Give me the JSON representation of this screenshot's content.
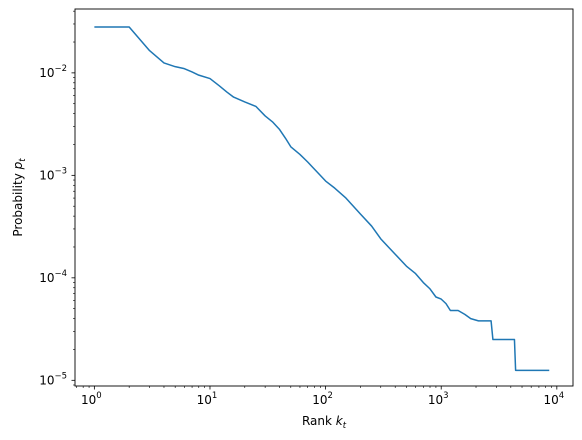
{
  "chart_data": {
    "type": "line",
    "title": "",
    "xlabel": "Rank k_t",
    "ylabel": "Probability p_t",
    "xscale": "log",
    "yscale": "log",
    "xlim": [
      0.68,
      13800
    ],
    "ylim": [
      8.8e-06,
      0.042
    ],
    "grid": false,
    "color": "#1f77b4",
    "x_ticks": [
      {
        "value": 1,
        "base": "10",
        "exp": "0"
      },
      {
        "value": 10,
        "base": "10",
        "exp": "1"
      },
      {
        "value": 100,
        "base": "10",
        "exp": "2"
      },
      {
        "value": 1000,
        "base": "10",
        "exp": "3"
      },
      {
        "value": 10000,
        "base": "10",
        "exp": "4"
      }
    ],
    "y_ticks": [
      {
        "value": 1e-05,
        "base": "10",
        "exp": "−5"
      },
      {
        "value": 0.0001,
        "base": "10",
        "exp": "−4"
      },
      {
        "value": 0.001,
        "base": "10",
        "exp": "−3"
      },
      {
        "value": 0.01,
        "base": "10",
        "exp": "−2"
      }
    ],
    "series": [
      {
        "x": [
          1,
          2,
          3,
          4,
          5,
          6,
          7,
          8,
          10,
          12,
          14,
          16,
          20,
          25,
          30,
          35,
          40,
          45,
          50,
          60,
          70,
          80,
          90,
          100,
          120,
          150,
          200,
          250,
          300,
          400,
          500,
          600,
          700,
          800,
          900,
          1000,
          1100,
          1200,
          1400,
          1600,
          1800,
          2100,
          2700,
          2800,
          4300,
          4400,
          8600
        ],
        "y": [
          0.028,
          0.028,
          0.0165,
          0.0125,
          0.0115,
          0.011,
          0.0102,
          0.0095,
          0.0088,
          0.0075,
          0.0065,
          0.0058,
          0.0052,
          0.0047,
          0.0038,
          0.0033,
          0.0028,
          0.0023,
          0.0019,
          0.0016,
          0.00135,
          0.00115,
          0.001,
          0.00088,
          0.00075,
          0.0006,
          0.00042,
          0.00032,
          0.00024,
          0.00017,
          0.00013,
          0.00011,
          9e-05,
          7.8e-05,
          6.5e-05,
          6.2e-05,
          5.6e-05,
          4.8e-05,
          4.8e-05,
          4.4e-05,
          4e-05,
          3.8e-05,
          3.8e-05,
          2.5e-05,
          2.5e-05,
          1.25e-05,
          1.25e-05
        ]
      }
    ]
  }
}
